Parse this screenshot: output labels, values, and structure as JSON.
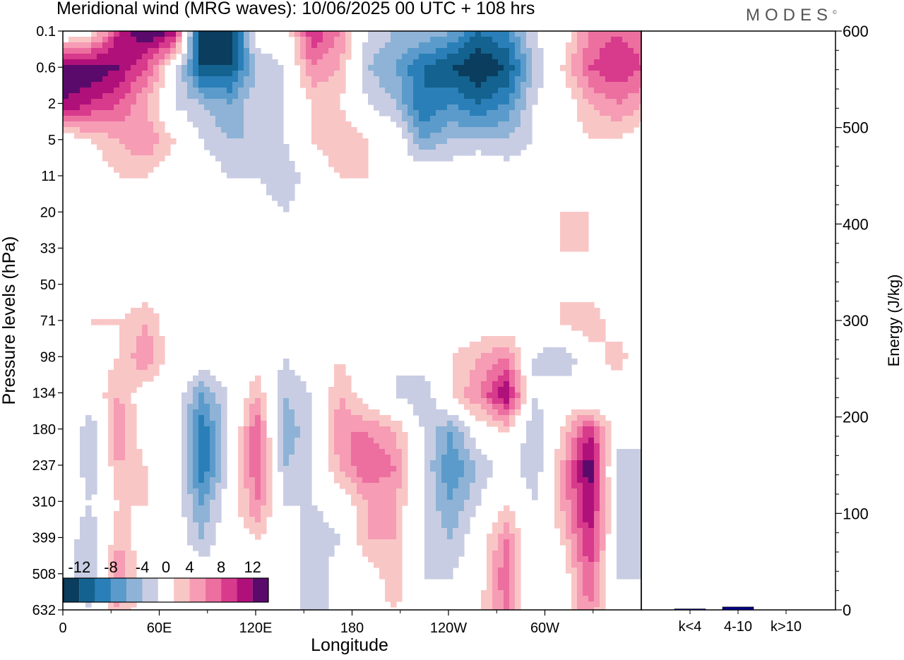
{
  "title": "Meridional wind (MRG waves):  10/06/2025  00 UTC  + 108 hrs",
  "brand": "MODES",
  "brand_mark": "©",
  "chart_data": [
    {
      "type": "heatmap",
      "title": "Meridional wind (MRG waves):  10/06/2025  00 UTC  + 108 hrs",
      "xlabel": "Longitude",
      "ylabel": "Pressure levels (hPa)",
      "x_ticks": [
        "0",
        "60E",
        "120E",
        "180",
        "120W",
        "60W"
      ],
      "x_tick_degrees": [
        0,
        60,
        120,
        180,
        240,
        300
      ],
      "xlim": [
        0,
        360
      ],
      "y_ticks": [
        "0.1",
        "0.6",
        "2",
        "5",
        "11",
        "20",
        "33",
        "50",
        "71",
        "98",
        "134",
        "180",
        "237",
        "310",
        "399",
        "508",
        "632"
      ],
      "colorbar": {
        "labels": [
          "-12",
          "-8",
          "-4",
          "0",
          "4",
          "8",
          "12"
        ],
        "levels": [
          -14,
          -12,
          -10,
          -8,
          -6,
          -4,
          -2,
          2,
          4,
          6,
          8,
          10,
          12,
          14
        ],
        "colors": [
          "#0b3d5e",
          "#13628f",
          "#2a7fb8",
          "#5b9bcb",
          "#8eb3d6",
          "#c8cde3",
          "#ffffff",
          "#f9c6c6",
          "#f69cb4",
          "#ec6fa0",
          "#d83a8c",
          "#b0107a",
          "#5a0a6b"
        ],
        "placement": "bottom-left"
      },
      "cells_note": "",
      "grid": false
    },
    {
      "type": "bar",
      "ylabel": "Energy (J/kg)",
      "categories": [
        "k<4",
        "4-10",
        "k>10"
      ],
      "values": [
        1,
        3,
        0
      ],
      "ylim": [
        0,
        600
      ],
      "y_ticks": [
        "0",
        "100",
        "200",
        "300",
        "400",
        "500",
        "600"
      ],
      "bar_colors": [
        "#000080",
        "#000080",
        "#000080"
      ]
    }
  ],
  "field": [
    [
      -2,
      0,
      10,
      14,
      12,
      -14,
      -14,
      0,
      0,
      10,
      6,
      -2,
      -4,
      -4,
      -6,
      -10,
      -8,
      -2,
      0,
      6,
      8,
      6
    ],
    [
      14,
      14,
      12,
      8,
      0,
      -12,
      -12,
      -4,
      -2,
      6,
      4,
      -4,
      -6,
      -10,
      -12,
      -14,
      -12,
      -4,
      2,
      8,
      10,
      8
    ],
    [
      12,
      10,
      8,
      4,
      -2,
      -4,
      -6,
      -2,
      -2,
      2,
      2,
      -2,
      -4,
      -10,
      -8,
      -10,
      -8,
      -2,
      0,
      4,
      6,
      4
    ],
    [
      0,
      2,
      4,
      6,
      2,
      -2,
      -4,
      -4,
      -2,
      2,
      4,
      2,
      0,
      -6,
      -4,
      -4,
      -4,
      -2,
      0,
      2,
      2,
      0
    ],
    [
      0,
      0,
      2,
      2,
      0,
      0,
      -2,
      -2,
      -4,
      0,
      2,
      2,
      0,
      0,
      0,
      2,
      0,
      0,
      0,
      0,
      0,
      0
    ],
    [
      0,
      0,
      0,
      0,
      0,
      0,
      0,
      0,
      -2,
      0,
      0,
      2,
      2,
      0,
      0,
      0,
      0,
      0,
      2,
      2,
      0,
      -2
    ],
    [
      -2,
      0,
      2,
      0,
      0,
      0,
      0,
      -2,
      -2,
      0,
      0,
      0,
      0,
      0,
      0,
      0,
      0,
      0,
      2,
      2,
      0,
      0
    ],
    [
      0,
      0,
      0,
      0,
      0,
      0,
      0,
      0,
      0,
      0,
      0,
      0,
      0,
      0,
      0,
      0,
      0,
      0,
      2,
      0,
      0,
      0
    ],
    [
      0,
      2,
      2,
      4,
      0,
      0,
      0,
      0,
      -2,
      0,
      0,
      0,
      -2,
      -2,
      0,
      0,
      0,
      0,
      2,
      4,
      0,
      -2
    ],
    [
      2,
      0,
      2,
      6,
      0,
      0,
      0,
      0,
      -2,
      0,
      2,
      0,
      -2,
      0,
      2,
      4,
      6,
      -2,
      -4,
      0,
      4,
      -2
    ],
    [
      2,
      0,
      4,
      0,
      0,
      -6,
      -2,
      4,
      -4,
      -2,
      4,
      0,
      -2,
      -4,
      2,
      6,
      12,
      -2,
      0,
      -2,
      -2,
      0
    ],
    [
      2,
      -4,
      6,
      0,
      0,
      -10,
      -2,
      8,
      -6,
      -2,
      6,
      6,
      4,
      -2,
      -6,
      0,
      2,
      -4,
      2,
      10,
      0,
      -2
    ],
    [
      2,
      -4,
      4,
      2,
      0,
      -10,
      -2,
      8,
      -4,
      -2,
      4,
      8,
      6,
      -2,
      -8,
      -4,
      0,
      -4,
      4,
      14,
      -4,
      -2
    ],
    [
      0,
      -2,
      2,
      2,
      0,
      -6,
      0,
      6,
      -2,
      -2,
      0,
      4,
      4,
      -2,
      -6,
      -2,
      2,
      -2,
      4,
      12,
      -2,
      -4
    ],
    [
      0,
      -4,
      4,
      0,
      0,
      -4,
      0,
      2,
      0,
      -4,
      -2,
      4,
      4,
      -2,
      -4,
      0,
      6,
      -2,
      2,
      10,
      -2,
      -4
    ],
    [
      0,
      -4,
      6,
      0,
      0,
      0,
      0,
      2,
      0,
      -4,
      0,
      0,
      4,
      -2,
      -2,
      0,
      8,
      -2,
      0,
      8,
      -2,
      -2
    ],
    [
      0,
      -2,
      4,
      0,
      0,
      0,
      -2,
      2,
      0,
      -4,
      0,
      0,
      2,
      -2,
      0,
      2,
      6,
      -2,
      0,
      6,
      -2,
      0
    ]
  ]
}
